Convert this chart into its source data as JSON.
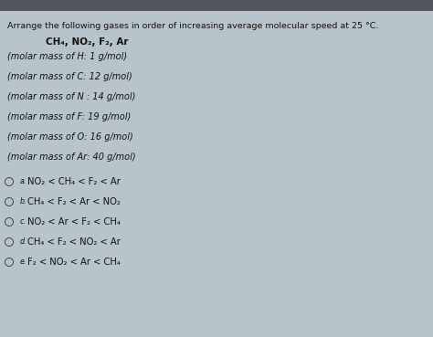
{
  "bg_color": "#b8c4cc",
  "bg_color2": "#a8b8c4",
  "title": "Arrange the following gases in order of increasing average molecular speed at 25 °C.",
  "subtitle": "CH₄, NO₂, F₂, Ar",
  "hints": [
    "(molar mass of H: 1 g/mol)",
    "(molar mass of C: 12 g/mol)",
    "(molar mass of N : 14 g/mol)",
    "(molar mass of F: 19 g/mol)",
    "(molar mass of O: 16 g/mol)",
    "(molar mass of Ar: 40 g/mol)"
  ],
  "choices": [
    "NO₂ < CH₄ < F₂ < Ar",
    "CH₄ < F₂ < Ar < NO₂",
    "NO₂ < Ar < F₂ < CH₄",
    "CH₄ < F₂ < NO₂ < Ar",
    "F₂ < NO₂ < Ar < CH₄"
  ],
  "choice_labels": [
    "a.",
    "b.",
    "c.",
    "d.",
    "e."
  ],
  "text_color": "#111111",
  "title_fontsize": 6.8,
  "subtitle_fontsize": 7.5,
  "hint_fontsize": 7.0,
  "choice_fontsize": 7.2,
  "top_bar_color": "#888888"
}
